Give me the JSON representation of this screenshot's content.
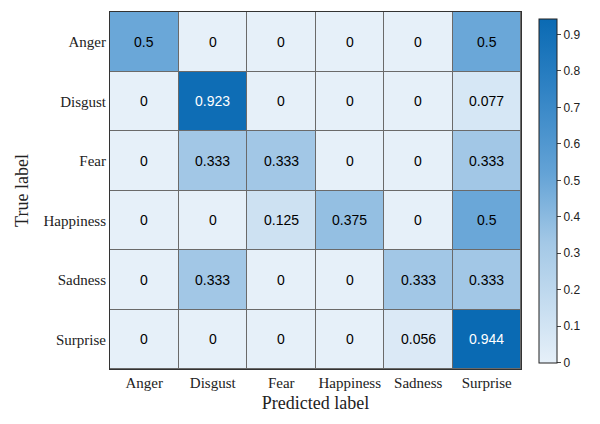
{
  "chart_data": {
    "type": "heatmap",
    "x_label": "Predicted label",
    "y_label": "True label",
    "x_categories": [
      "Anger",
      "Disgust",
      "Fear",
      "Happiness",
      "Sadness",
      "Surprise"
    ],
    "y_categories": [
      "Anger",
      "Disgust",
      "Fear",
      "Happiness",
      "Sadness",
      "Surprise"
    ],
    "cells": [
      [
        0.5,
        0,
        0,
        0,
        0,
        0.5
      ],
      [
        0,
        0.923,
        0,
        0,
        0,
        0.077
      ],
      [
        0,
        0.333,
        0.333,
        0,
        0,
        0.333
      ],
      [
        0,
        0,
        0.125,
        0.375,
        0,
        0.5
      ],
      [
        0,
        0.333,
        0,
        0,
        0.333,
        0.333
      ],
      [
        0,
        0,
        0,
        0,
        0.056,
        0.944
      ]
    ],
    "zlim": [
      0,
      0.944
    ],
    "zticks": [
      0,
      0.1,
      0.2,
      0.3,
      0.4,
      0.5,
      0.6,
      0.7,
      0.8,
      0.9
    ],
    "data_labels": true
  }
}
